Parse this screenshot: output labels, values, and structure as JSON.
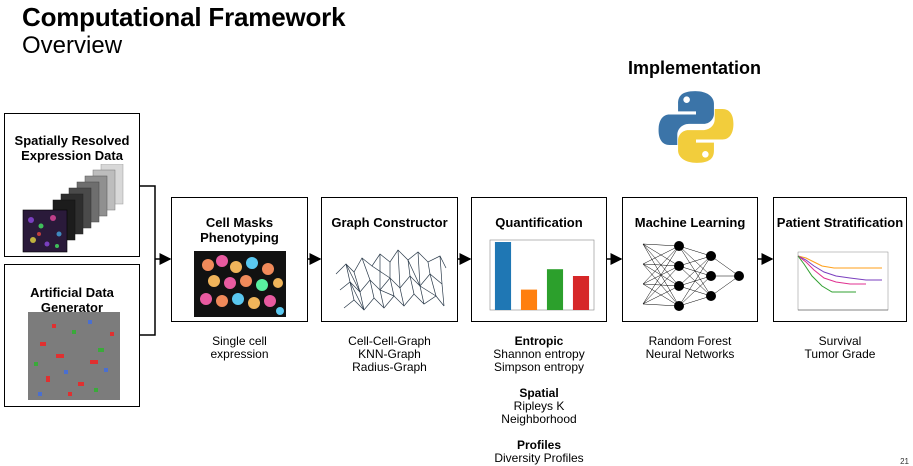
{
  "header": {
    "title": "Computational Framework",
    "subtitle": "Overview"
  },
  "implementation": {
    "label": "Implementation",
    "icon": "python-logo-icon"
  },
  "inputs": [
    {
      "title": "Spatially Resolved Expression Data"
    },
    {
      "title": "Artificial Data Generator"
    }
  ],
  "steps": [
    {
      "title": "Cell Masks Phenotyping",
      "caption": [
        "Single cell",
        "expression"
      ]
    },
    {
      "title": "Graph Constructor",
      "caption": [
        "Cell-Cell-Graph",
        "KNN-Graph",
        "Radius-Graph"
      ]
    },
    {
      "title": "Quantification",
      "groups": [
        {
          "heading": "Entropic",
          "items": [
            "Shannon entropy",
            "Simpson entropy"
          ]
        },
        {
          "heading": "Spatial",
          "items": [
            "Ripleys K",
            "Neighborhood"
          ]
        },
        {
          "heading": "Profiles",
          "items": [
            "Diversity Profiles"
          ]
        }
      ]
    },
    {
      "title": "Machine Learning",
      "caption": [
        "Random Forest",
        "Neural Networks"
      ]
    },
    {
      "title": "Patient Stratification",
      "caption": [
        "Survival",
        "Tumor Grade"
      ]
    }
  ],
  "quant_chart": {
    "type": "bar",
    "values": [
      10,
      3,
      6,
      5
    ],
    "colors": [
      "#1f77b4",
      "#ff7f0e",
      "#2ca02c",
      "#d62728"
    ],
    "ylim": [
      0,
      10
    ]
  },
  "page_number": "21"
}
